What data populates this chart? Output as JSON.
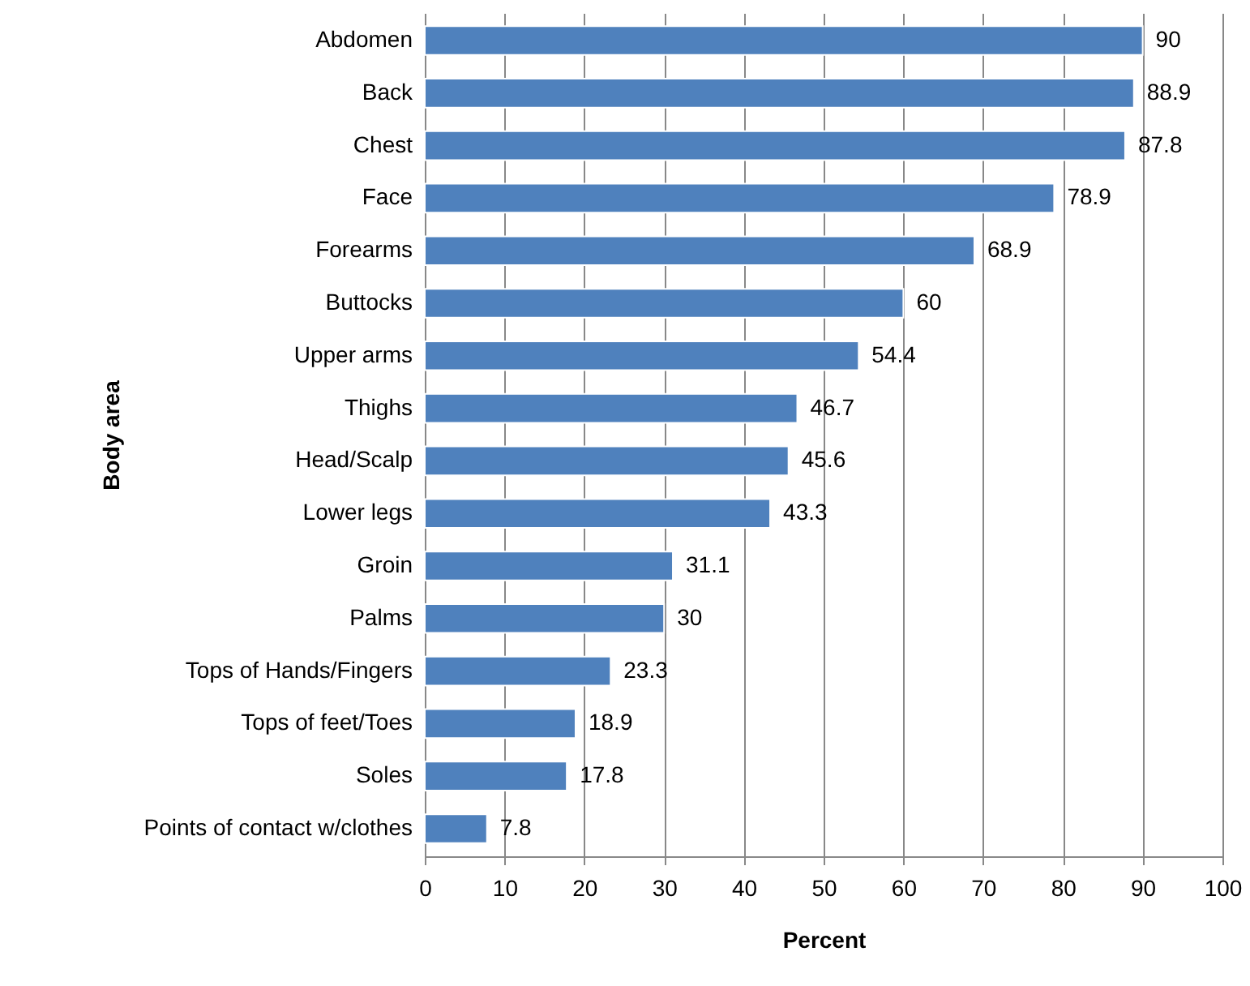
{
  "chart_data": {
    "type": "bar",
    "orientation": "horizontal",
    "xlabel": "Percent",
    "ylabel": "Body area",
    "categories": [
      "Abdomen",
      "Back",
      "Chest",
      "Face",
      "Forearms",
      "Buttocks",
      "Upper arms",
      "Thighs",
      "Head/Scalp",
      "Lower legs",
      "Groin",
      "Palms",
      "Tops of Hands/Fingers",
      "Tops of feet/Toes",
      "Soles",
      "Points of contact w/clothes"
    ],
    "values": [
      90,
      88.9,
      87.8,
      78.9,
      68.9,
      60,
      54.4,
      46.7,
      45.6,
      43.3,
      31.1,
      30,
      23.3,
      18.9,
      17.8,
      7.8
    ],
    "color": "#4f81bd",
    "xlim": [
      0,
      100
    ],
    "xticks": [
      0,
      10,
      20,
      30,
      40,
      50,
      60,
      70,
      80,
      90,
      100
    ],
    "grid": "x",
    "data_labels": true
  }
}
